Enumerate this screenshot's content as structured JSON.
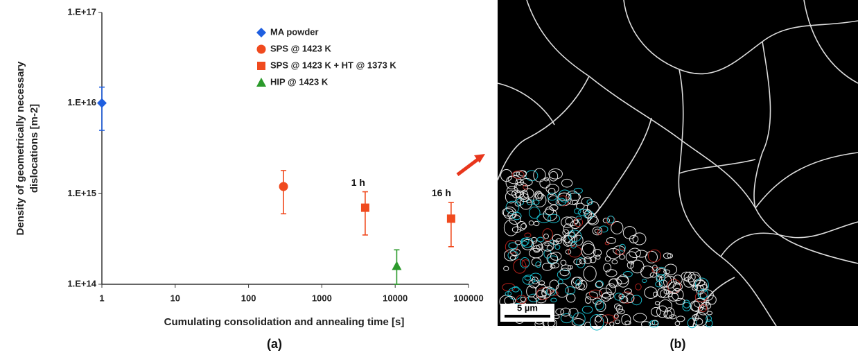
{
  "chart_data": {
    "type": "scatter",
    "panel_label": "(a)",
    "xlabel": "Cumulating consolidation and annealing time [s]",
    "ylabel": [
      "Density of geometrically necessary",
      "dislocations [m-2]"
    ],
    "xscale": "log",
    "yscale": "log",
    "xlim": [
      1,
      100000
    ],
    "ylim": [
      100000000000000.0,
      1e+17
    ],
    "xticks": [
      1,
      10,
      100,
      1000,
      10000,
      100000
    ],
    "yticks": [
      {
        "value": 100000000000000.0,
        "label": "1.E+14"
      },
      {
        "value": 1000000000000000.0,
        "label": "1.E+15"
      },
      {
        "value": 1e+16,
        "label": "1.E+16"
      },
      {
        "value": 1e+17,
        "label": "1.E+17"
      }
    ],
    "legend": "upper right",
    "series": [
      {
        "name": "MA powder",
        "color": "#1f5fe0",
        "marker": "diamond",
        "x": [
          1
        ],
        "values": [
          1e+16
        ],
        "errors": [
          5000000000000000.0
        ]
      },
      {
        "name": "SPS @ 1423 K",
        "color": "#f04a1e",
        "marker": "circle",
        "x": [
          300
        ],
        "values": [
          1200000000000000.0
        ],
        "errors": [
          600000000000000.0
        ]
      },
      {
        "name": "SPS @ 1423 K + HT @ 1373 K",
        "color": "#f04a1e",
        "marker": "square",
        "x": [
          3900,
          57900
        ],
        "values": [
          700000000000000.0,
          530000000000000.0
        ],
        "errors": [
          350000000000000.0,
          270000000000000.0
        ]
      },
      {
        "name": "HIP @ 1423 K",
        "color": "#2b9a2b",
        "marker": "triangle",
        "x": [
          10500
        ],
        "values": [
          160000000000000.0
        ],
        "errors": [
          80000000000000.0
        ]
      }
    ],
    "annotations": [
      {
        "text": "1 h",
        "x": 3900,
        "y": 1300000000000000.0
      },
      {
        "text": "16 h",
        "x": 57900,
        "y": 1000000000000000.0
      }
    ]
  },
  "image": {
    "scale_bar": "5 µm",
    "panel_label": "(b)"
  }
}
